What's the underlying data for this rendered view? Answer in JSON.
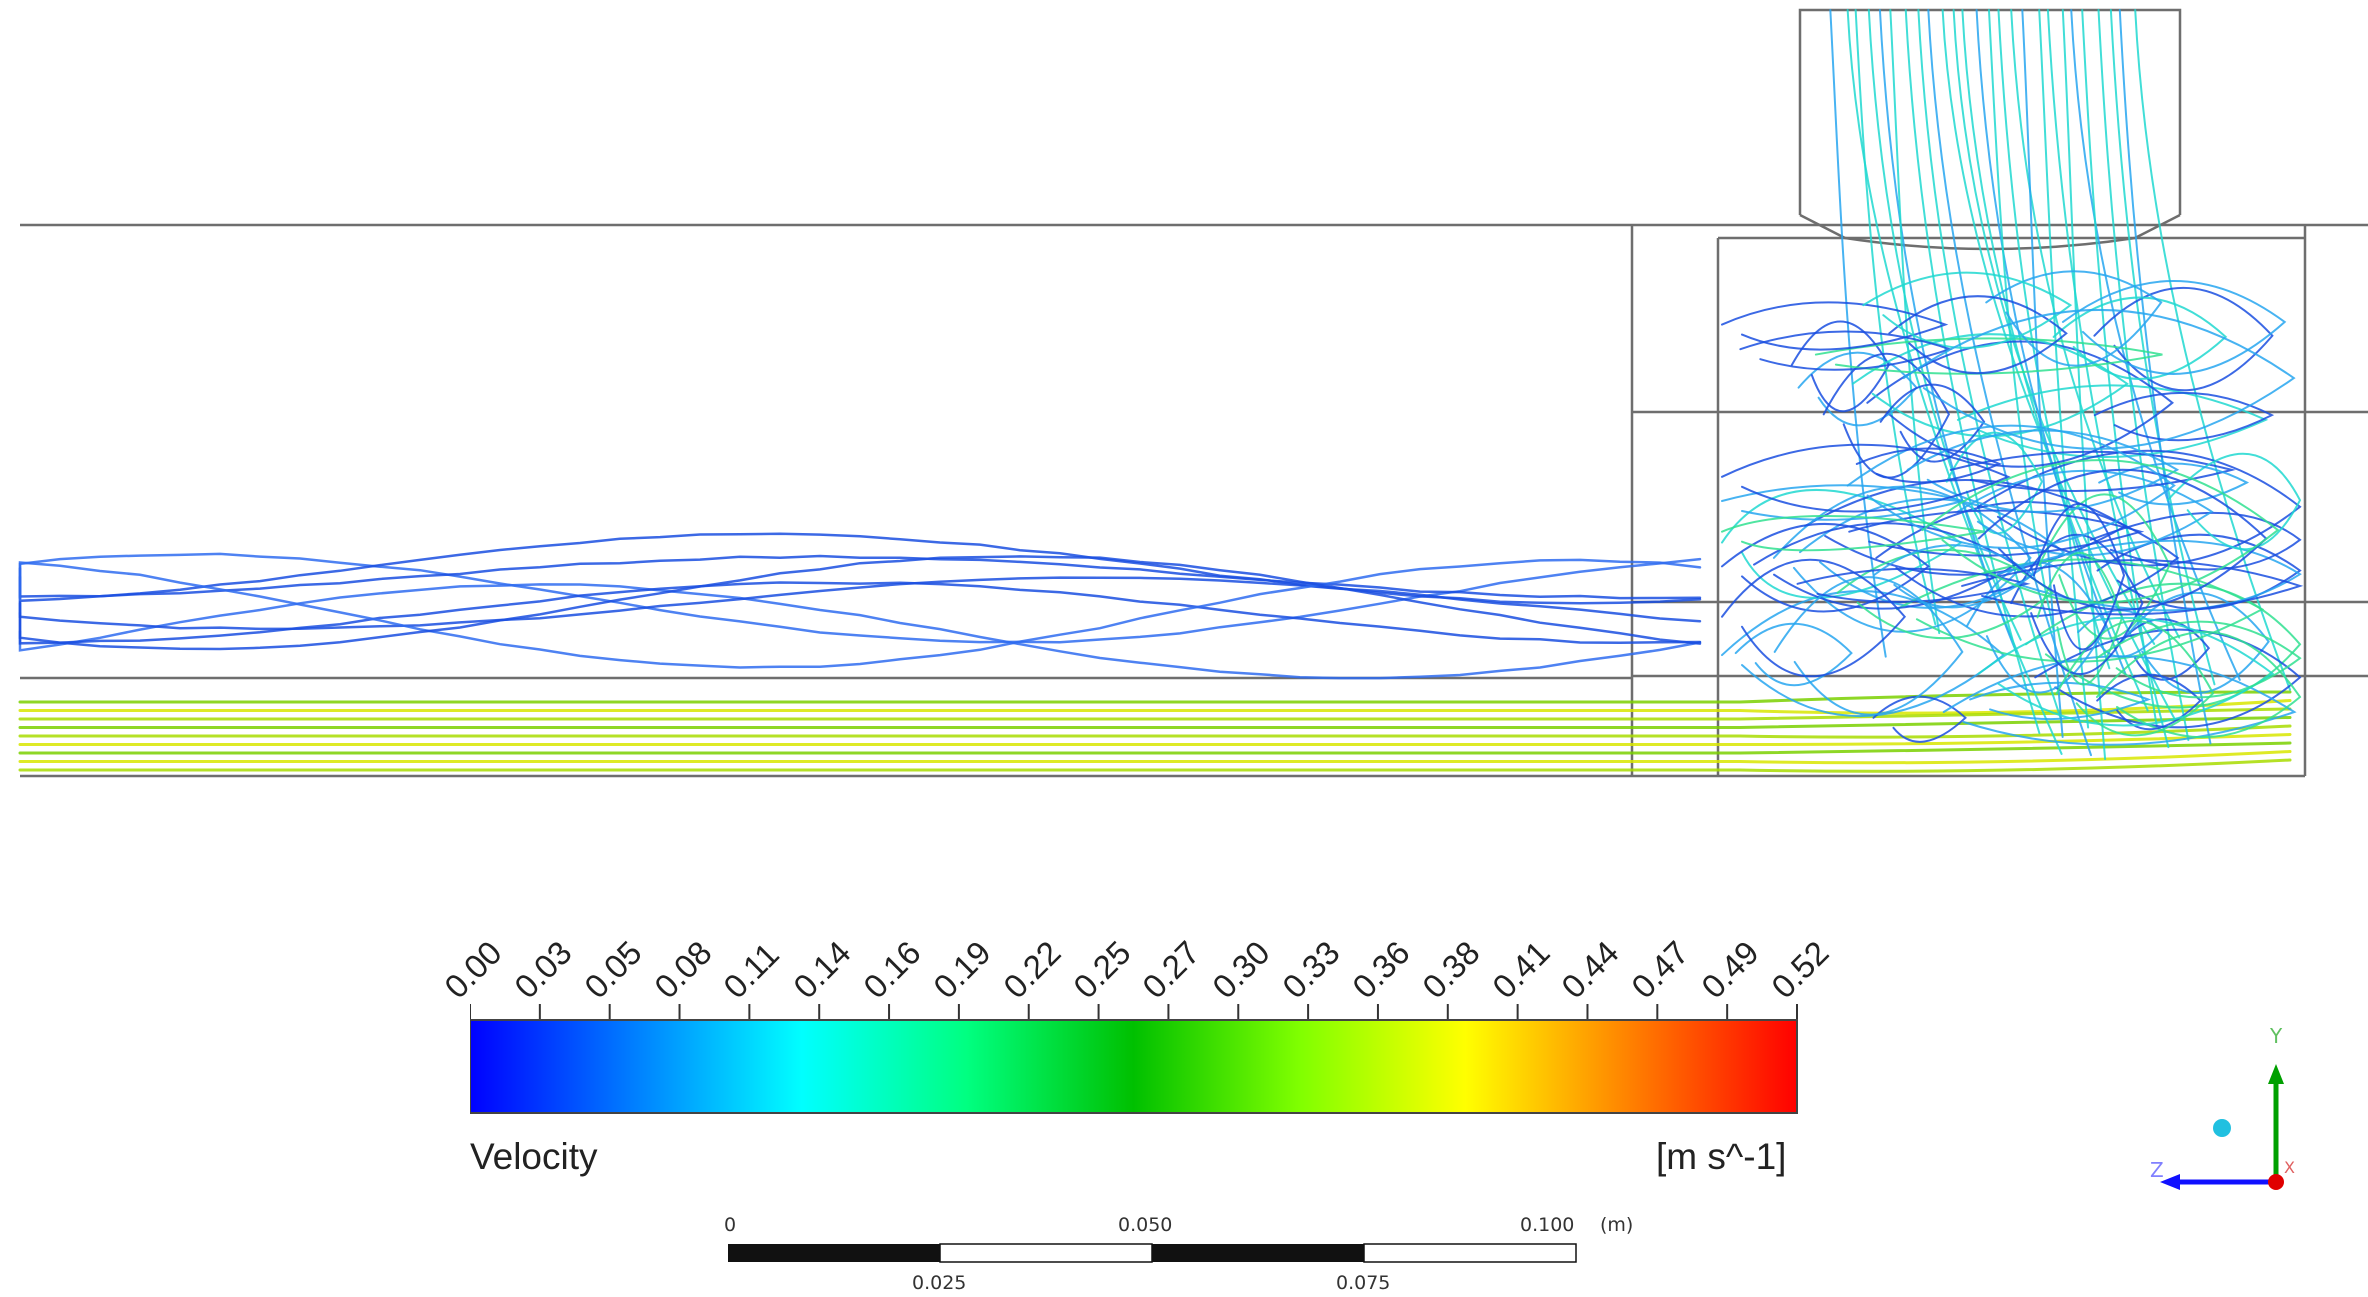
{
  "legend": {
    "title": "Velocity",
    "unit": "[m s^-1]",
    "ticks": [
      "0.00",
      "0.03",
      "0.05",
      "0.08",
      "0.11",
      "0.14",
      "0.16",
      "0.19",
      "0.22",
      "0.25",
      "0.27",
      "0.30",
      "0.33",
      "0.36",
      "0.38",
      "0.41",
      "0.44",
      "0.47",
      "0.49",
      "0.52"
    ],
    "colormap": [
      "#0000ff",
      "#0080ff",
      "#00ffff",
      "#00ff80",
      "#00c000",
      "#80ff00",
      "#ffff00",
      "#ff8000",
      "#ff0000"
    ]
  },
  "scale_bar": {
    "top_labels": [
      "0",
      "0.050",
      "0.100",
      "(m)"
    ],
    "bottom_labels": [
      "0.025",
      "0.075"
    ]
  },
  "axis_triad": {
    "y_label": "Y",
    "z_label": "Z",
    "x_label": "X",
    "colors": {
      "y": "#00a000",
      "z": "#1010ff",
      "x": "#e00000",
      "dot": "#20c0e0"
    }
  },
  "streamline_colors": {
    "slow": "#1a4fe0",
    "mid": "#27a6f0",
    "cyan": "#20d8d0",
    "fast": "#7ad000",
    "fastest": "#d8e600"
  }
}
